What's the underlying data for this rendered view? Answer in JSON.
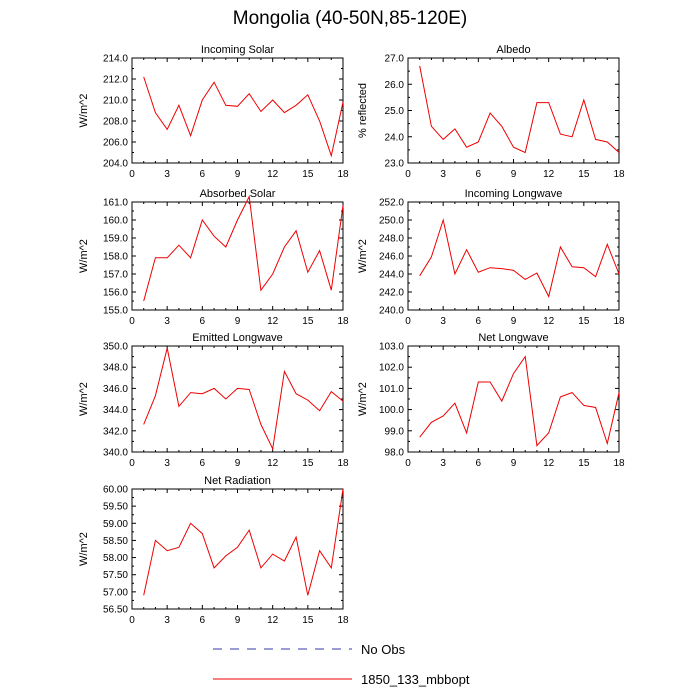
{
  "page_title": "Mongolia (40-50N,85-120E)",
  "legend": [
    {
      "label": "No Obs",
      "style": "dashed",
      "color": "#3a3aa8"
    },
    {
      "label": "1850_133_mbbopt",
      "style": "solid",
      "color": "#ee0000"
    }
  ],
  "chart_data": [
    {
      "type": "line",
      "title": "Incoming Solar",
      "xlabel": "",
      "ylabel": "W/m^2",
      "xlim": [
        0,
        18
      ],
      "ylim": [
        204.0,
        214.0
      ],
      "xticks": [
        0,
        3,
        6,
        9,
        12,
        15,
        18
      ],
      "yticks": [
        "204.0",
        "206.0",
        "208.0",
        "210.0",
        "212.0",
        "214.0"
      ],
      "series": [
        {
          "color": "#ee0000",
          "x": [
            1,
            2,
            3,
            4,
            5,
            6,
            7,
            8,
            9,
            10,
            11,
            12,
            13,
            14,
            15,
            16,
            17,
            18
          ],
          "values": [
            212.2,
            208.8,
            207.2,
            209.5,
            206.6,
            210.0,
            211.7,
            209.5,
            209.4,
            210.6,
            208.9,
            210.0,
            208.8,
            209.5,
            210.5,
            208.0,
            204.7,
            209.8
          ]
        }
      ]
    },
    {
      "type": "line",
      "title": "Albedo",
      "xlabel": "",
      "ylabel": "% reflected",
      "xlim": [
        0,
        18
      ],
      "ylim": [
        23.0,
        27.0
      ],
      "xticks": [
        0,
        3,
        6,
        9,
        12,
        15,
        18
      ],
      "yticks": [
        "23.0",
        "24.0",
        "25.0",
        "26.0",
        "27.0"
      ],
      "series": [
        {
          "color": "#ee0000",
          "x": [
            1,
            2,
            3,
            4,
            5,
            6,
            7,
            8,
            9,
            10,
            11,
            12,
            13,
            14,
            15,
            16,
            17,
            18
          ],
          "values": [
            26.7,
            24.4,
            23.9,
            24.3,
            23.6,
            23.8,
            24.9,
            24.4,
            23.6,
            23.4,
            25.3,
            25.3,
            24.1,
            24.0,
            25.4,
            23.9,
            23.8,
            23.4
          ]
        }
      ]
    },
    {
      "type": "line",
      "title": "Absorbed Solar",
      "xlabel": "",
      "ylabel": "W/m^2",
      "xlim": [
        0,
        18
      ],
      "ylim": [
        155.0,
        161.0
      ],
      "xticks": [
        0,
        3,
        6,
        9,
        12,
        15,
        18
      ],
      "yticks": [
        "155.0",
        "156.0",
        "157.0",
        "158.0",
        "159.0",
        "160.0",
        "161.0"
      ],
      "series": [
        {
          "color": "#ee0000",
          "x": [
            1,
            2,
            3,
            4,
            5,
            6,
            7,
            8,
            9,
            10,
            11,
            12,
            13,
            14,
            15,
            16,
            17,
            18
          ],
          "values": [
            155.5,
            157.9,
            157.9,
            158.6,
            157.9,
            160.0,
            159.1,
            158.5,
            160.0,
            161.3,
            156.1,
            157.0,
            158.5,
            159.4,
            157.1,
            158.3,
            156.1,
            160.8
          ]
        }
      ]
    },
    {
      "type": "line",
      "title": "Incoming Longwave",
      "xlabel": "",
      "ylabel": "W/m^2",
      "xlim": [
        0,
        18
      ],
      "ylim": [
        240.0,
        252.0
      ],
      "xticks": [
        0,
        3,
        6,
        9,
        12,
        15,
        18
      ],
      "yticks": [
        "240.0",
        "242.0",
        "244.0",
        "246.0",
        "248.0",
        "250.0",
        "252.0"
      ],
      "series": [
        {
          "color": "#ee0000",
          "x": [
            1,
            2,
            3,
            4,
            5,
            6,
            7,
            8,
            9,
            10,
            11,
            12,
            13,
            14,
            15,
            16,
            17,
            18
          ],
          "values": [
            243.8,
            245.9,
            250.0,
            244.0,
            246.7,
            244.2,
            244.7,
            244.6,
            244.4,
            243.4,
            244.1,
            241.5,
            247.0,
            244.8,
            244.7,
            243.7,
            247.3,
            244.0
          ]
        }
      ]
    },
    {
      "type": "line",
      "title": "Emitted Longwave",
      "xlabel": "",
      "ylabel": "W/m^2",
      "xlim": [
        0,
        18
      ],
      "ylim": [
        340.0,
        350.0
      ],
      "xticks": [
        0,
        3,
        6,
        9,
        12,
        15,
        18
      ],
      "yticks": [
        "340.0",
        "342.0",
        "344.0",
        "346.0",
        "348.0",
        "350.0"
      ],
      "series": [
        {
          "color": "#ee0000",
          "x": [
            1,
            2,
            3,
            4,
            5,
            6,
            7,
            8,
            9,
            10,
            11,
            12,
            13,
            14,
            15,
            16,
            17,
            18
          ],
          "values": [
            342.6,
            345.3,
            349.8,
            344.3,
            345.6,
            345.5,
            346.0,
            345.0,
            346.0,
            345.9,
            342.6,
            340.3,
            347.6,
            345.5,
            344.9,
            343.9,
            345.7,
            344.8
          ]
        }
      ]
    },
    {
      "type": "line",
      "title": "Net Longwave",
      "xlabel": "",
      "ylabel": "W/m^2",
      "xlim": [
        0,
        18
      ],
      "ylim": [
        98.0,
        103.0
      ],
      "xticks": [
        0,
        3,
        6,
        9,
        12,
        15,
        18
      ],
      "yticks": [
        "98.0",
        "99.0",
        "100.0",
        "101.0",
        "102.0",
        "103.0"
      ],
      "series": [
        {
          "color": "#ee0000",
          "x": [
            1,
            2,
            3,
            4,
            5,
            6,
            7,
            8,
            9,
            10,
            11,
            12,
            13,
            14,
            15,
            16,
            17,
            18
          ],
          "values": [
            98.7,
            99.4,
            99.7,
            100.3,
            98.9,
            101.3,
            101.3,
            100.4,
            101.7,
            102.5,
            98.3,
            98.9,
            100.6,
            100.8,
            100.2,
            100.1,
            98.4,
            100.8
          ]
        }
      ]
    },
    {
      "type": "line",
      "title": "Net Radiation",
      "xlabel": "",
      "ylabel": "W/m^2",
      "xlim": [
        0,
        18
      ],
      "ylim": [
        56.5,
        60.0
      ],
      "xticks": [
        0,
        3,
        6,
        9,
        12,
        15,
        18
      ],
      "yticks": [
        "56.50",
        "57.00",
        "57.50",
        "58.00",
        "58.50",
        "59.00",
        "59.50",
        "60.00"
      ],
      "series": [
        {
          "color": "#ee0000",
          "x": [
            1,
            2,
            3,
            4,
            5,
            6,
            7,
            8,
            9,
            10,
            11,
            12,
            13,
            14,
            15,
            16,
            17,
            18
          ],
          "values": [
            56.9,
            58.5,
            58.2,
            58.3,
            59.0,
            58.7,
            57.7,
            58.05,
            58.3,
            58.8,
            57.7,
            58.1,
            57.9,
            58.6,
            56.9,
            58.2,
            57.7,
            60.0
          ]
        }
      ]
    }
  ]
}
